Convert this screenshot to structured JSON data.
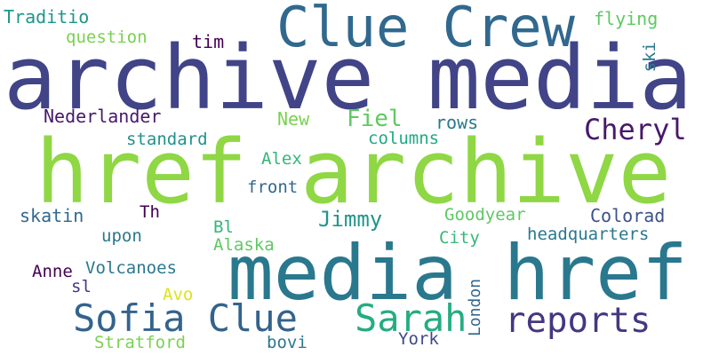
{
  "words": [
    {
      "id": "archive-media",
      "text": "archive media",
      "color": "#414487"
    },
    {
      "id": "href-archive",
      "text": "href archive",
      "color": "#8fd744"
    },
    {
      "id": "media-href",
      "text": "media href",
      "color": "#2a788e"
    },
    {
      "id": "clue-crew",
      "text": "Clue Crew",
      "color": "#31688e"
    },
    {
      "id": "sofia-clue",
      "text": "Sofia Clue",
      "color": "#33638d"
    },
    {
      "id": "sarah",
      "text": "Sarah",
      "color": "#25ac82"
    },
    {
      "id": "reports",
      "text": "reports",
      "color": "#453781"
    },
    {
      "id": "cheryl",
      "text": "Cheryl",
      "color": "#48186a"
    },
    {
      "id": "fiel",
      "text": "Fiel",
      "color": "#5ec962"
    },
    {
      "id": "jimmy",
      "text": "Jimmy",
      "color": "#1f968b"
    },
    {
      "id": "traditio",
      "text": "Traditio",
      "color": "#1f968b"
    },
    {
      "id": "question",
      "text": "question",
      "color": "#7ad151"
    },
    {
      "id": "tim",
      "text": "tim",
      "color": "#440154"
    },
    {
      "id": "flying",
      "text": "flying",
      "color": "#5ec962"
    },
    {
      "id": "ski",
      "text": "ski",
      "color": "#2a788e"
    },
    {
      "id": "nederlander",
      "text": "Nederlander",
      "color": "#48186a"
    },
    {
      "id": "new",
      "text": "New",
      "color": "#7ad151"
    },
    {
      "id": "rows",
      "text": "rows",
      "color": "#2a788e"
    },
    {
      "id": "columns",
      "text": "columns",
      "color": "#22a884"
    },
    {
      "id": "standard",
      "text": "standard",
      "color": "#21918c"
    },
    {
      "id": "alex",
      "text": "Alex",
      "color": "#35b779"
    },
    {
      "id": "front",
      "text": "front",
      "color": "#31688e"
    },
    {
      "id": "skatin",
      "text": "skatin",
      "color": "#31688e"
    },
    {
      "id": "th",
      "text": "Th",
      "color": "#440154"
    },
    {
      "id": "goodyear",
      "text": "Goodyear",
      "color": "#5ec962"
    },
    {
      "id": "colorad",
      "text": "Colorad",
      "color": "#3b528b"
    },
    {
      "id": "bl",
      "text": "Bl",
      "color": "#35b779"
    },
    {
      "id": "upon",
      "text": "upon",
      "color": "#2a788e"
    },
    {
      "id": "city",
      "text": "City",
      "color": "#35b779"
    },
    {
      "id": "headquarters",
      "text": "headquarters",
      "color": "#2a788e"
    },
    {
      "id": "alaska",
      "text": "Alaska",
      "color": "#5ec962"
    },
    {
      "id": "anne",
      "text": "Anne",
      "color": "#440154"
    },
    {
      "id": "volcanoes",
      "text": "Volcanoes",
      "color": "#2a788e"
    },
    {
      "id": "sl",
      "text": "sl",
      "color": "#443983"
    },
    {
      "id": "avo",
      "text": "Avo",
      "color": "#dde318"
    },
    {
      "id": "london",
      "text": "London",
      "color": "#31688e"
    },
    {
      "id": "york",
      "text": "York",
      "color": "#3e4989"
    },
    {
      "id": "stratford",
      "text": "Stratford",
      "color": "#7ad151"
    },
    {
      "id": "bovi",
      "text": "bovi",
      "color": "#2a788e"
    }
  ]
}
